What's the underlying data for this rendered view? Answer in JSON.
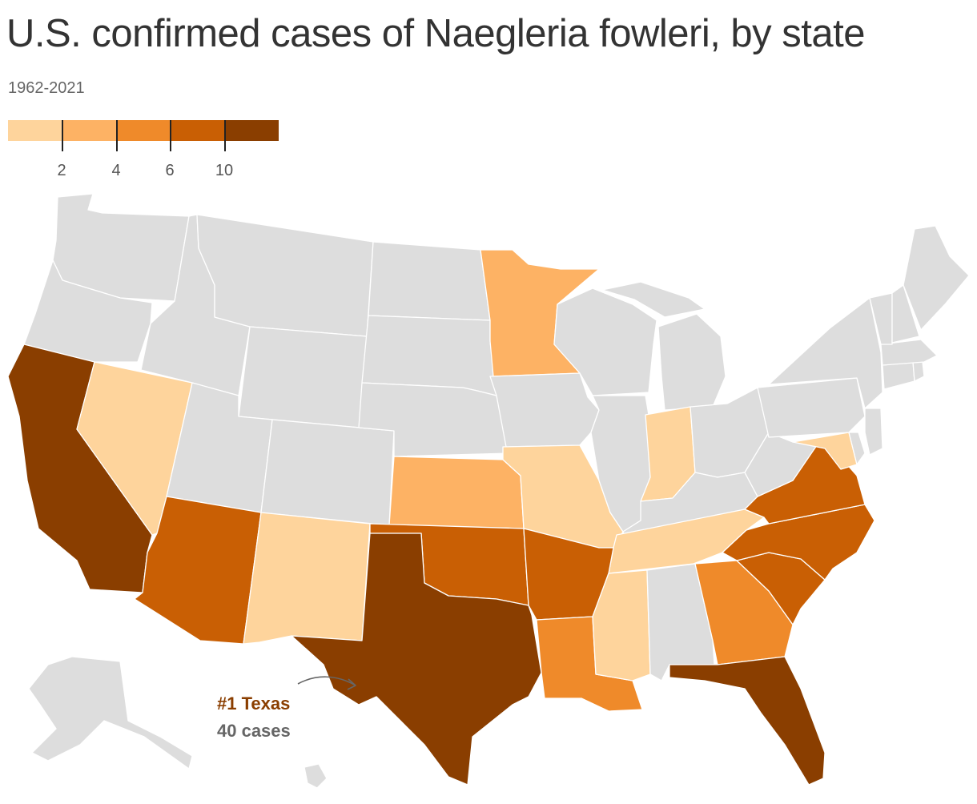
{
  "title": "U.S. confirmed cases of Naegleria fowleri, by state",
  "subtitle": "1962-2021",
  "legend": {
    "colors": [
      "#fed49c",
      "#fdb264",
      "#ef8a2a",
      "#c95f04",
      "#8a3e00"
    ],
    "tick_labels": [
      "2",
      "4",
      "6",
      "10"
    ]
  },
  "no_data_color": "#dddddd",
  "annotation": {
    "state_label": "#1 Texas",
    "cases_label": "40 cases"
  },
  "state_colors": {
    "california": "#8a3e00",
    "texas": "#8a3e00",
    "florida": "#8a3e00",
    "arizona": "#c95f04",
    "oklahoma": "#c95f04",
    "arkansas": "#c95f04",
    "south_carolina": "#c95f04",
    "north_carolina": "#c95f04",
    "virginia": "#c95f04",
    "louisiana": "#ef8a2a",
    "georgia": "#ef8a2a",
    "kansas": "#fdb264",
    "minnesota": "#fdb264",
    "nevada": "#fed49c",
    "new_mexico": "#fed49c",
    "missouri": "#fed49c",
    "indiana": "#fed49c",
    "tennessee": "#fed49c",
    "mississippi": "#fed49c",
    "maryland": "#fed49c"
  }
}
